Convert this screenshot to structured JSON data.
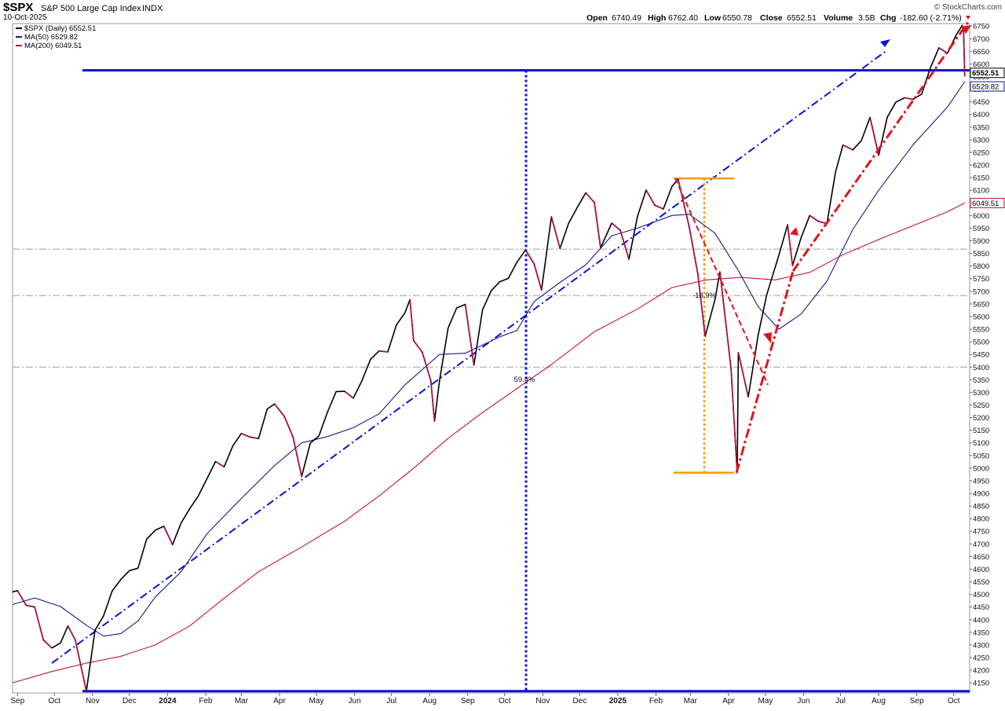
{
  "header": {
    "symbol": "$SPX",
    "name": "S&P 500 Large Cap Index",
    "exchange": "INDX",
    "date": "10-Oct-2025",
    "watermark": "© StockCharts.com",
    "open_label": "Open",
    "open": "6740.49",
    "high_label": "High",
    "high": "6762.40",
    "low_label": "Low",
    "low": "6550.78",
    "close_label": "Close",
    "close": "6552.51",
    "volume_label": "Volume",
    "volume": "3.5B",
    "chg_label": "Chg",
    "chg": "-182.60 (-2.71%)"
  },
  "legend": [
    {
      "text": "$SPX (Daily) 6552.51",
      "color": "#000000"
    },
    {
      "text": "MA(50) 6529.82",
      "color": "#1a1a8c"
    },
    {
      "text": "MA(200) 6049.51",
      "color": "#c0143c"
    }
  ],
  "chart_data": {
    "type": "line",
    "x_axis_labels": [
      "Sep",
      "Oct",
      "Nov",
      "Dec",
      "2024",
      "Feb",
      "Mar",
      "Apr",
      "May",
      "Jun",
      "Jul",
      "Aug",
      "Sep",
      "Oct",
      "Nov",
      "Dec",
      "2025",
      "Feb",
      "Mar",
      "Apr",
      "May",
      "Jun",
      "Jul",
      "Aug",
      "Sep",
      "Oct"
    ],
    "ylim": [
      4100,
      6770
    ],
    "y_ticks": [
      4150,
      4200,
      4250,
      4300,
      4350,
      4400,
      4450,
      4500,
      4550,
      4600,
      4650,
      4700,
      4750,
      4800,
      4850,
      4900,
      4950,
      5000,
      5050,
      5100,
      5150,
      5200,
      5250,
      5300,
      5350,
      5400,
      5450,
      5500,
      5550,
      5600,
      5650,
      5700,
      5750,
      5800,
      5850,
      5900,
      5950,
      6000,
      6050,
      6100,
      6150,
      6200,
      6250,
      6300,
      6350,
      6400,
      6450,
      6500,
      6550,
      6600,
      6650,
      6700,
      6750
    ],
    "series": [
      {
        "name": "$SPX (Daily)",
        "color": "#000000",
        "points": [
          [
            "2023-08-28",
            4510
          ],
          [
            "2023-09-01",
            4515
          ],
          [
            "2023-09-08",
            4457
          ],
          [
            "2023-09-15",
            4450
          ],
          [
            "2023-09-22",
            4320
          ],
          [
            "2023-09-29",
            4288
          ],
          [
            "2023-10-06",
            4308
          ],
          [
            "2023-10-12",
            4375
          ],
          [
            "2023-10-18",
            4320
          ],
          [
            "2023-10-27",
            4117
          ],
          [
            "2023-11-03",
            4358
          ],
          [
            "2023-11-10",
            4415
          ],
          [
            "2023-11-17",
            4514
          ],
          [
            "2023-11-24",
            4559
          ],
          [
            "2023-12-01",
            4594
          ],
          [
            "2023-12-08",
            4604
          ],
          [
            "2023-12-15",
            4719
          ],
          [
            "2023-12-22",
            4754
          ],
          [
            "2023-12-29",
            4770
          ],
          [
            "2024-01-05",
            4697
          ],
          [
            "2024-01-12",
            4783
          ],
          [
            "2024-01-19",
            4839
          ],
          [
            "2024-01-26",
            4890
          ],
          [
            "2024-02-02",
            4958
          ],
          [
            "2024-02-09",
            5026
          ],
          [
            "2024-02-16",
            5005
          ],
          [
            "2024-02-23",
            5088
          ],
          [
            "2024-03-01",
            5137
          ],
          [
            "2024-03-08",
            5123
          ],
          [
            "2024-03-15",
            5117
          ],
          [
            "2024-03-22",
            5234
          ],
          [
            "2024-03-28",
            5254
          ],
          [
            "2024-04-05",
            5204
          ],
          [
            "2024-04-12",
            5123
          ],
          [
            "2024-04-19",
            4967
          ],
          [
            "2024-04-26",
            5099
          ],
          [
            "2024-05-03",
            5127
          ],
          [
            "2024-05-10",
            5222
          ],
          [
            "2024-05-17",
            5303
          ],
          [
            "2024-05-24",
            5304
          ],
          [
            "2024-05-31",
            5277
          ],
          [
            "2024-06-07",
            5346
          ],
          [
            "2024-06-14",
            5431
          ],
          [
            "2024-06-21",
            5464
          ],
          [
            "2024-06-28",
            5460
          ],
          [
            "2024-07-05",
            5567
          ],
          [
            "2024-07-12",
            5615
          ],
          [
            "2024-07-16",
            5667
          ],
          [
            "2024-07-19",
            5505
          ],
          [
            "2024-07-26",
            5459
          ],
          [
            "2024-08-02",
            5346
          ],
          [
            "2024-08-05",
            5186
          ],
          [
            "2024-08-09",
            5344
          ],
          [
            "2024-08-16",
            5554
          ],
          [
            "2024-08-23",
            5634
          ],
          [
            "2024-08-30",
            5648
          ],
          [
            "2024-09-06",
            5408
          ],
          [
            "2024-09-13",
            5626
          ],
          [
            "2024-09-20",
            5702
          ],
          [
            "2024-09-27",
            5738
          ],
          [
            "2024-10-04",
            5751
          ],
          [
            "2024-10-11",
            5815
          ],
          [
            "2024-10-18",
            5864
          ],
          [
            "2024-10-25",
            5808
          ],
          [
            "2024-10-31",
            5705
          ],
          [
            "2024-11-08",
            5995
          ],
          [
            "2024-11-15",
            5870
          ],
          [
            "2024-11-22",
            5969
          ],
          [
            "2024-11-29",
            6032
          ],
          [
            "2024-12-06",
            6090
          ],
          [
            "2024-12-13",
            6051
          ],
          [
            "2024-12-18",
            5872
          ],
          [
            "2024-12-27",
            5970
          ],
          [
            "2025-01-03",
            5942
          ],
          [
            "2025-01-10",
            5827
          ],
          [
            "2025-01-17",
            5997
          ],
          [
            "2025-01-24",
            6101
          ],
          [
            "2025-01-31",
            6041
          ],
          [
            "2025-02-07",
            6026
          ],
          [
            "2025-02-14",
            6115
          ],
          [
            "2025-02-19",
            6144
          ],
          [
            "2025-02-28",
            5955
          ],
          [
            "2025-03-07",
            5770
          ],
          [
            "2025-03-13",
            5522
          ],
          [
            "2025-03-21",
            5668
          ],
          [
            "2025-03-25",
            5777
          ],
          [
            "2025-04-03",
            5396
          ],
          [
            "2025-04-08",
            4982
          ],
          [
            "2025-04-09",
            5457
          ],
          [
            "2025-04-17",
            5282
          ],
          [
            "2025-04-25",
            5525
          ],
          [
            "2025-05-02",
            5686
          ],
          [
            "2025-05-12",
            5844
          ],
          [
            "2025-05-19",
            5963
          ],
          [
            "2025-05-23",
            5802
          ],
          [
            "2025-05-30",
            5912
          ],
          [
            "2025-06-06",
            6000
          ],
          [
            "2025-06-13",
            5977
          ],
          [
            "2025-06-20",
            5968
          ],
          [
            "2025-06-27",
            6173
          ],
          [
            "2025-07-03",
            6279
          ],
          [
            "2025-07-11",
            6260
          ],
          [
            "2025-07-18",
            6297
          ],
          [
            "2025-07-25",
            6389
          ],
          [
            "2025-08-01",
            6238
          ],
          [
            "2025-08-08",
            6389
          ],
          [
            "2025-08-15",
            6449
          ],
          [
            "2025-08-22",
            6466
          ],
          [
            "2025-08-29",
            6460
          ],
          [
            "2025-09-05",
            6481
          ],
          [
            "2025-09-12",
            6584
          ],
          [
            "2025-09-19",
            6664
          ],
          [
            "2025-09-26",
            6643
          ],
          [
            "2025-10-03",
            6715
          ],
          [
            "2025-10-08",
            6753
          ],
          [
            "2025-10-09",
            6735
          ],
          [
            "2025-10-10",
            6552.51
          ]
        ]
      },
      {
        "name": "MA(50)",
        "color": "#1a1a8c",
        "points": [
          [
            "2023-08-28",
            4460
          ],
          [
            "2023-09-15",
            4486
          ],
          [
            "2023-10-06",
            4452
          ],
          [
            "2023-10-27",
            4378
          ],
          [
            "2023-11-10",
            4335
          ],
          [
            "2023-11-24",
            4345
          ],
          [
            "2023-12-08",
            4395
          ],
          [
            "2023-12-22",
            4490
          ],
          [
            "2024-01-12",
            4590
          ],
          [
            "2024-02-02",
            4740
          ],
          [
            "2024-03-01",
            4880
          ],
          [
            "2024-03-28",
            5010
          ],
          [
            "2024-04-19",
            5100
          ],
          [
            "2024-05-10",
            5125
          ],
          [
            "2024-05-31",
            5160
          ],
          [
            "2024-06-21",
            5215
          ],
          [
            "2024-07-12",
            5330
          ],
          [
            "2024-08-09",
            5450
          ],
          [
            "2024-08-30",
            5455
          ],
          [
            "2024-09-27",
            5520
          ],
          [
            "2024-10-11",
            5545
          ],
          [
            "2024-10-25",
            5660
          ],
          [
            "2024-11-15",
            5735
          ],
          [
            "2024-12-06",
            5805
          ],
          [
            "2024-12-27",
            5920
          ],
          [
            "2025-01-17",
            5950
          ],
          [
            "2025-02-14",
            6000
          ],
          [
            "2025-02-28",
            6005
          ],
          [
            "2025-03-21",
            5930
          ],
          [
            "2025-04-08",
            5790
          ],
          [
            "2025-04-25",
            5640
          ],
          [
            "2025-05-12",
            5550
          ],
          [
            "2025-05-30",
            5610
          ],
          [
            "2025-06-20",
            5740
          ],
          [
            "2025-07-11",
            5945
          ],
          [
            "2025-08-01",
            6100
          ],
          [
            "2025-08-29",
            6280
          ],
          [
            "2025-09-26",
            6430
          ],
          [
            "2025-10-10",
            6529.82
          ]
        ]
      },
      {
        "name": "MA(200)",
        "color": "#c0143c",
        "points": [
          [
            "2023-08-28",
            4150
          ],
          [
            "2023-09-29",
            4195
          ],
          [
            "2023-10-27",
            4228
          ],
          [
            "2023-11-24",
            4255
          ],
          [
            "2023-12-22",
            4300
          ],
          [
            "2024-01-19",
            4375
          ],
          [
            "2024-02-16",
            4485
          ],
          [
            "2024-03-15",
            4590
          ],
          [
            "2024-04-19",
            4688
          ],
          [
            "2024-05-24",
            4790
          ],
          [
            "2024-06-21",
            4890
          ],
          [
            "2024-07-19",
            5000
          ],
          [
            "2024-08-16",
            5118
          ],
          [
            "2024-09-13",
            5220
          ],
          [
            "2024-10-11",
            5315
          ],
          [
            "2024-11-08",
            5410
          ],
          [
            "2024-12-13",
            5540
          ],
          [
            "2025-01-17",
            5630
          ],
          [
            "2025-02-14",
            5715
          ],
          [
            "2025-03-14",
            5745
          ],
          [
            "2025-04-11",
            5755
          ],
          [
            "2025-05-09",
            5745
          ],
          [
            "2025-06-06",
            5775
          ],
          [
            "2025-07-03",
            5845
          ],
          [
            "2025-08-01",
            5905
          ],
          [
            "2025-08-29",
            5960
          ],
          [
            "2025-09-26",
            6015
          ],
          [
            "2025-10-10",
            6049.51
          ]
        ]
      }
    ],
    "annotations": [
      {
        "text": "59.4%"
      },
      {
        "text": "-18.9%"
      }
    ],
    "price_flags": [
      {
        "text": "6552.51"
      },
      {
        "text": "6529.82"
      },
      {
        "text": "6049.51"
      }
    ]
  }
}
